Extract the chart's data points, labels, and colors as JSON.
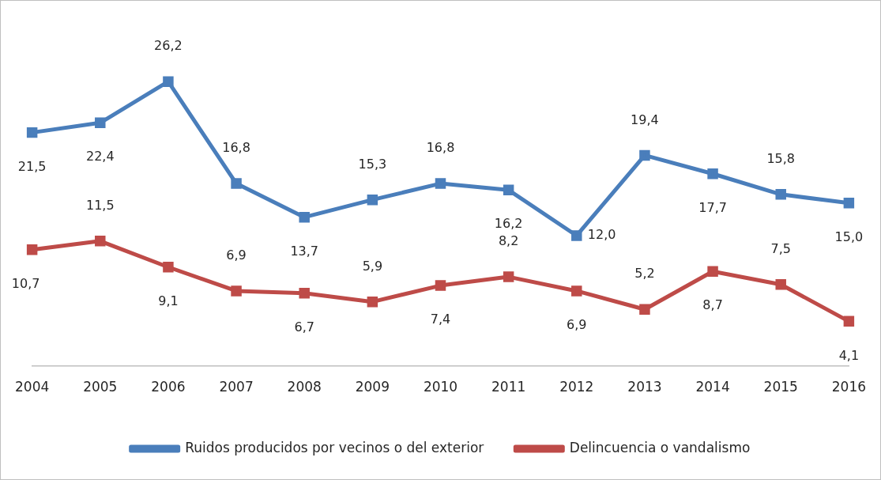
{
  "chart_data": {
    "type": "line",
    "categories": [
      "2004",
      "2005",
      "2006",
      "2007",
      "2008",
      "2009",
      "2010",
      "2011",
      "2012",
      "2013",
      "2014",
      "2015",
      "2016"
    ],
    "series": [
      {
        "name": "Ruidos producidos por vecinos o del exterior",
        "color": "#4a7ebb",
        "values": [
          21.5,
          22.4,
          26.2,
          16.8,
          13.7,
          15.3,
          16.8,
          16.2,
          12.0,
          19.4,
          17.7,
          15.8,
          15.0
        ],
        "value_labels": [
          "21,5",
          "22,4",
          "26,2",
          "16,8",
          "13,7",
          "15,3",
          "16,8",
          "16,2",
          "12,0",
          "19,4",
          "17,7",
          "15,8",
          "15,0"
        ]
      },
      {
        "name": "Delincuencia o vandalismo",
        "color": "#be4b48",
        "values": [
          10.7,
          11.5,
          9.1,
          6.9,
          6.7,
          5.9,
          7.4,
          8.2,
          6.9,
          5.2,
          8.7,
          7.5,
          4.1
        ],
        "value_labels": [
          "10,7",
          "11,5",
          "9,1",
          "6,9",
          "6,7",
          "5,9",
          "7,4",
          "8,2",
          "6,9",
          "5,2",
          "8,7",
          "7,5",
          "4,1"
        ]
      }
    ],
    "tick_labels": "x",
    "legend": "bottom",
    "marker": "square",
    "line_style": "solid",
    "grid": false
  }
}
